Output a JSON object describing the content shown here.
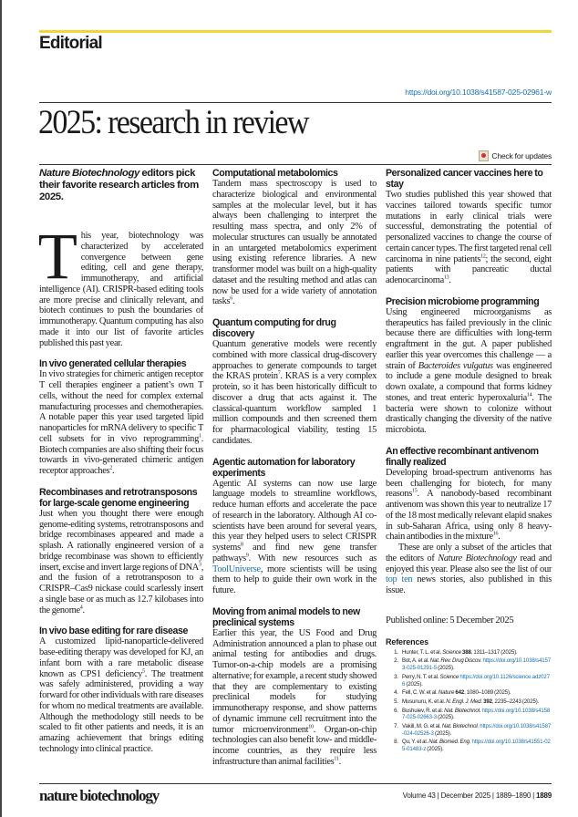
{
  "header": {
    "section": "Editorial",
    "doi": "https://doi.org/10.1038/s41587-025-02961-w",
    "title": "2025: research in review",
    "check_updates": "Check for updates"
  },
  "standfirst": [
    {
      "i": "Nature Biotechnology"
    },
    {
      "t": " editors pick their favorite research articles from 2025."
    }
  ],
  "intro": {
    "drop": "T",
    "body": [
      {
        "t": "his year, biotechnology was characterized by accelerated convergence between gene editing, cell and gene therapy, immunotherapy, and artificial intelligence (AI). CRISPR-based editing tools are more precise and clinically relevant, and biotech continues to push the boundaries of immunotherapy. Quantum computing has also made it into our list of favorite articles published this past year."
      }
    ]
  },
  "columns": [
    [
      {
        "heading": "In vivo generated cellular therapies",
        "body": [
          {
            "t": "In vivo strategies for chimeric antigen receptor T cell therapies engineer a patient’s own T cells, without the need for complex external manufacturing processes and chemotherapies. A notable paper this year used targeted lipid nanoparticles for mRNA delivery to specific T cell subsets for in vivo reprogramming"
          },
          {
            "sup": "1"
          },
          {
            "t": ". Biotech companies are also shifting their focus towards in vivo-generated chimeric antigen receptor approaches"
          },
          {
            "sup": "2"
          },
          {
            "t": "."
          }
        ]
      },
      {
        "heading": "Recombinases and retrotransposons for large-scale genome engineering",
        "body": [
          {
            "t": "Just when you thought there were enough genome-editing systems, retrotransposons and bridge recombinases appeared and made a splash. A rationally engineered version of a bridge recombinase was shown to efficiently insert, excise and invert large regions of DNA"
          },
          {
            "sup": "3"
          },
          {
            "t": ", and the fusion of a retrotransposon to a CRISPR–Cas9 nickase could scarlessly insert a single base or as much as 12.7 kilobases into the genome"
          },
          {
            "sup": "4"
          },
          {
            "t": "."
          }
        ]
      },
      {
        "heading": "In vivo base editing for rare disease",
        "body": [
          {
            "t": "A customized lipid-nanoparticle-delivered base-editing therapy was developed for KJ, an infant born with a rare metabolic disease known as CPS1 deficiency"
          },
          {
            "sup": "5"
          },
          {
            "t": ". The treatment was safely administered, providing a way forward for other individuals with rare diseases for whom no medical treatments are available. Although the methodology still needs to be scaled to fit other patients and needs, it is an amazing achievement that brings editing technology into clinical practice."
          }
        ]
      }
    ],
    [
      {
        "heading": "Computational metabolomics",
        "body": [
          {
            "t": "Tandem mass spectroscopy is used to characterize biological and environmental samples at the molecular level, but it has always been challenging to interpret the resulting mass spectra, and only 2% of molecular structures can usually be annotated in an untargeted metabolomics experiment using existing reference libraries. A new transformer model was built on a high-quality dataset and the resulting method and atlas can now be used for a wide variety of annotation tasks"
          },
          {
            "sup": "6"
          },
          {
            "t": "."
          }
        ]
      },
      {
        "heading": "Quantum computing for drug discovery",
        "body": [
          {
            "t": "Quantum generative models were recently combined with more classical drug-discovery approaches to generate compounds to target the KRAS protein"
          },
          {
            "sup": "7"
          },
          {
            "t": ". KRAS is a very complex protein, so it has been historically difficult to discover a drug that acts against it. The classical-quantum workflow sampled 1 million compounds and then screened them for pharmacological viability, testing 15 candidates."
          }
        ]
      },
      {
        "heading": "Agentic automation for laboratory experiments",
        "body": [
          {
            "t": "Agentic AI systems can now use large language models to streamline workflows, reduce human efforts and accelerate the pace of research in the laboratory. Although AI co-scientists have been around for several years, this year they helped users to select CRISPR systems"
          },
          {
            "sup": "8"
          },
          {
            "t": " and find new gene transfer pathways"
          },
          {
            "sup": "9"
          },
          {
            "t": ". With new resources such as "
          },
          {
            "a": "ToolUniverse"
          },
          {
            "t": ", more scientists will be using them to help to guide their own work in the future."
          }
        ]
      },
      {
        "heading": "Moving from animal models to new preclinical systems",
        "body": [
          {
            "t": "Earlier this year, the US Food and Drug Administration announced a plan to phase out animal testing for antibodies and drugs. Tumor-on-a-chip models are a promising alternative; for example, a recent study showed that they are complementary to existing preclinical models for studying immunotherapy response, and show patterns of dynamic immune cell recruitment into the tumor microenvironment"
          },
          {
            "sup": "10"
          },
          {
            "t": ". Organ-on-chip technologies can also benefit low- and middle-income countries, as they require less infrastructure than animal facilities"
          },
          {
            "sup": "11"
          },
          {
            "t": "."
          }
        ]
      }
    ],
    [
      {
        "heading": "Personalized cancer vaccines here to stay",
        "body": [
          {
            "t": "Two studies published this year showed that vaccines tailored towards specific tumor mutations in early clinical trials were successful, demonstrating the potential of personalized vaccines to change the course of certain cancer types. The first targeted renal cell carcinoma in nine patients"
          },
          {
            "sup": "12"
          },
          {
            "t": "; the second, eight patients with pancreatic ductal adenocarcinoma"
          },
          {
            "sup": "13"
          },
          {
            "t": "."
          }
        ]
      },
      {
        "heading": "Precision microbiome programming",
        "body": [
          {
            "t": "Using engineered microorganisms as therapeutics has failed previously in the clinic because there are difficulties with long-term engraftment in the gut. A paper published earlier this year overcomes this challenge — a strain of "
          },
          {
            "i": "Bacteroides vulgatus"
          },
          {
            "t": " was engineered to include a gene module designed to break down oxalate, a compound that forms kidney stones, and treat enteric hyperoxaluria"
          },
          {
            "sup": "14"
          },
          {
            "t": ". The bacteria were shown to colonize without drastically changing the diversity of the native microbiota."
          }
        ]
      },
      {
        "heading": "An effective recombinant antivenom finally realized",
        "body": [
          {
            "t": "Developing broad-spectrum antivenoms has been challenging for biotech, for many reasons"
          },
          {
            "sup": "15"
          },
          {
            "t": ". A nanobody-based recombinant antivenom was shown this year to neutralize 17 of the 18 most medically relevant elapid snakes in sub-Saharan Africa, using only 8 heavy-chain antibodies in the mixture"
          },
          {
            "sup": "16"
          },
          {
            "t": "."
          }
        ]
      }
    ]
  ],
  "closing": [
    {
      "t": "These are only a subset of the articles that the editors of "
    },
    {
      "i": "Nature Biotechnology"
    },
    {
      "t": " read and enjoyed this year. Please also see the list of our "
    },
    {
      "a": "top ten"
    },
    {
      "t": " news stories, also published in this issue."
    }
  ],
  "published": "Published online: 5 December 2025",
  "references": {
    "title": "References",
    "items": [
      [
        {
          "t": "Hunter, T. L. et al. "
        },
        {
          "i": "Science"
        },
        {
          "t": " "
        },
        {
          "b": "388"
        },
        {
          "t": ", 1311–1317 (2025)."
        }
      ],
      [
        {
          "t": "Bot, A. et al. "
        },
        {
          "i": "Nat. Rev. Drug Discov."
        },
        {
          "t": " "
        },
        {
          "a": "https://doi.org/10.1038/s41573-025-01291-5"
        },
        {
          "t": " (2025)."
        }
      ],
      [
        {
          "t": "Perry, N. T. et al. "
        },
        {
          "i": "Science"
        },
        {
          "t": " "
        },
        {
          "a": "https://doi.org/10.1126/science.adz0276"
        },
        {
          "t": " (2025)."
        }
      ],
      [
        {
          "t": "Fell, C. W. et al. "
        },
        {
          "i": "Nature"
        },
        {
          "t": " "
        },
        {
          "b": "642"
        },
        {
          "t": ", 1080–1089 (2025)."
        }
      ],
      [
        {
          "t": "Musunuru, K. et al. "
        },
        {
          "i": "N. Engl. J. Med."
        },
        {
          "t": " "
        },
        {
          "b": "392"
        },
        {
          "t": ", 2235–2243 (2025)."
        }
      ],
      [
        {
          "t": "Bushuiev, R. et al. "
        },
        {
          "i": "Nat. Biotechnol."
        },
        {
          "t": " "
        },
        {
          "a": "https://doi.org/10.1038/s41587-025-02663-3"
        },
        {
          "t": " (2025)."
        }
      ],
      [
        {
          "t": "Vakili, M. G. et al. "
        },
        {
          "i": "Nat. Biotechnol."
        },
        {
          "t": " "
        },
        {
          "a": "https://doi.org/10.1038/s41587-024-02526-3"
        },
        {
          "t": " (2025)."
        }
      ],
      [
        {
          "t": "Qu, Y. et al. "
        },
        {
          "i": "Nat. Biomed. Eng."
        },
        {
          "t": " "
        },
        {
          "a": "https://doi.org/10.1038/s41551-025-01483-z"
        },
        {
          "t": " (2025)."
        }
      ]
    ]
  },
  "footer": {
    "journal": "nature biotechnology",
    "volume": "Volume 43 | December 2025 | 1889–1890 | ",
    "page": "1889"
  },
  "colors": {
    "accent_bar": "#f0d63a",
    "link": "#1a6fb0"
  }
}
